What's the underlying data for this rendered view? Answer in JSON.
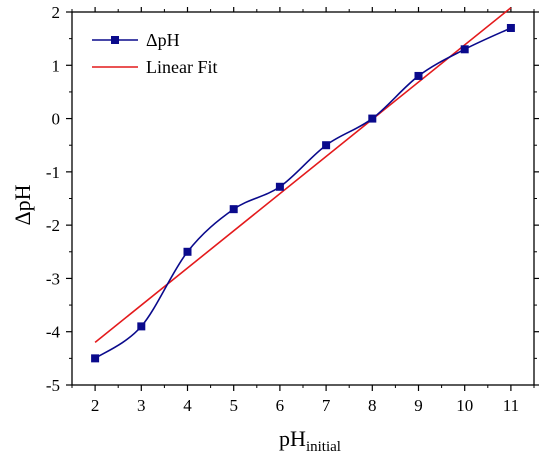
{
  "chart_data": {
    "type": "line",
    "xlabel": "pH",
    "xlabel_sub": "initial",
    "ylabel": "ΔpH",
    "x": [
      2,
      3,
      4,
      5,
      6,
      7,
      8,
      9,
      10,
      11
    ],
    "xlim": [
      1.5,
      11.5
    ],
    "ylim": [
      -5,
      2
    ],
    "xticks": [
      "2",
      "3",
      "4",
      "5",
      "6",
      "7",
      "8",
      "9",
      "10",
      "11"
    ],
    "yticks": [
      "-5",
      "-4",
      "-3",
      "-2",
      "-1",
      "0",
      "1",
      "2"
    ],
    "grid": false,
    "legend_position": "top-left",
    "series": [
      {
        "name": "ΔpH",
        "color": "#0a0a8c",
        "marker": "square",
        "values": [
          -4.5,
          -3.9,
          -2.5,
          -1.7,
          -1.28,
          -0.5,
          0.0,
          0.8,
          1.3,
          1.7
        ]
      },
      {
        "name": "Linear Fit",
        "color": "#e41a1c",
        "style": "line",
        "x": [
          2,
          11
        ],
        "values": [
          -4.2,
          2.08
        ]
      }
    ]
  }
}
